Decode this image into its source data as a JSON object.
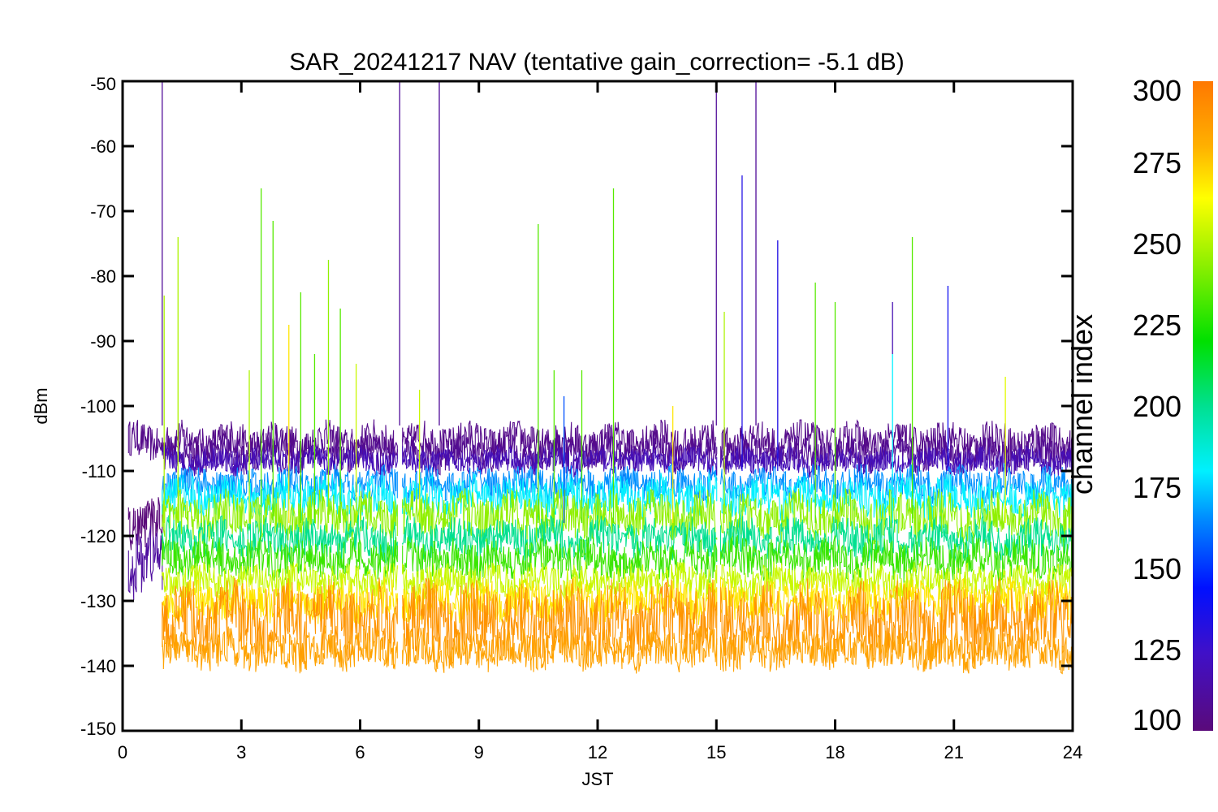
{
  "chart_data": {
    "type": "line",
    "title": "SAR_20241217 NAV (tentative gain_correction= -5.1 dB)",
    "xlabel": "JST",
    "ylabel": "dBm",
    "xlim": [
      0,
      24
    ],
    "ylim": [
      -150,
      -50
    ],
    "x_ticks": [
      "0",
      "3",
      "6",
      "9",
      "12",
      "15",
      "18",
      "21",
      "24"
    ],
    "y_ticks": [
      "-50",
      "-60",
      "-70",
      "-80",
      "-90",
      "-100",
      "-110",
      "-120",
      "-130",
      "-140",
      "-150"
    ],
    "colorbar": {
      "label": "channel index",
      "range": [
        100,
        300
      ],
      "ticks": [
        "300",
        "275",
        "250",
        "225",
        "200",
        "175",
        "150",
        "125",
        "100"
      ],
      "colormap": "rainbow"
    },
    "data_gaps_x": [
      7.0,
      15.05
    ],
    "bands": [
      {
        "channel": 105,
        "center": -105.5,
        "halfwidth": 2.8,
        "start": 0.15
      },
      {
        "channel": 108,
        "center": -107.5,
        "halfwidth": 2.5,
        "start": 1.0
      },
      {
        "channel": 120,
        "center": -108.5,
        "halfwidth": 2.0,
        "start": 1.0
      },
      {
        "channel": 100,
        "center": -118.0,
        "halfwidth": 3.5,
        "start": 0.15,
        "end": 1.0
      },
      {
        "channel": 112,
        "center": -124.0,
        "halfwidth": 5.0,
        "start": 0.15,
        "end": 1.0
      },
      {
        "channel": 165,
        "center": -112.0,
        "halfwidth": 2.5,
        "start": 1.0
      },
      {
        "channel": 180,
        "center": -114.0,
        "halfwidth": 3.0,
        "start": 1.0
      },
      {
        "channel": 245,
        "center": -117.0,
        "halfwidth": 3.5,
        "start": 1.0
      },
      {
        "channel": 200,
        "center": -120.5,
        "halfwidth": 3.0,
        "start": 1.0
      },
      {
        "channel": 230,
        "center": -123.5,
        "halfwidth": 3.0,
        "start": 1.0
      },
      {
        "channel": 255,
        "center": -127.0,
        "halfwidth": 2.5,
        "start": 1.0
      },
      {
        "channel": 270,
        "center": -130.0,
        "halfwidth": 3.0,
        "start": 1.0
      },
      {
        "channel": 290,
        "center": -133.0,
        "halfwidth": 5.5,
        "start": 1.0
      },
      {
        "channel": 285,
        "center": -137.5,
        "halfwidth": 3.0,
        "start": 1.0
      }
    ],
    "spikes": [
      {
        "x": 1.0,
        "y_top": -50,
        "y_bottom": -103,
        "channel": 110
      },
      {
        "x": 1.05,
        "y_top": -83,
        "y_bottom": -118,
        "channel": 250
      },
      {
        "x": 1.4,
        "y_top": -74,
        "y_bottom": -118,
        "channel": 250
      },
      {
        "x": 3.2,
        "y_top": -94.5,
        "y_bottom": -118,
        "channel": 250
      },
      {
        "x": 3.5,
        "y_top": -66.5,
        "y_bottom": -118,
        "channel": 235
      },
      {
        "x": 3.8,
        "y_top": -71.5,
        "y_bottom": -118,
        "channel": 235
      },
      {
        "x": 4.2,
        "y_top": -87.5,
        "y_bottom": -118,
        "channel": 270
      },
      {
        "x": 4.5,
        "y_top": -82.5,
        "y_bottom": -118,
        "channel": 235
      },
      {
        "x": 4.85,
        "y_top": -92,
        "y_bottom": -118,
        "channel": 235
      },
      {
        "x": 5.2,
        "y_top": -77.5,
        "y_bottom": -118,
        "channel": 245
      },
      {
        "x": 5.5,
        "y_top": -85,
        "y_bottom": -118,
        "channel": 235
      },
      {
        "x": 5.9,
        "y_top": -93.5,
        "y_bottom": -118,
        "channel": 255
      },
      {
        "x": 7.0,
        "y_top": -50,
        "y_bottom": -103,
        "channel": 110
      },
      {
        "x": 7.5,
        "y_top": -97.5,
        "y_bottom": -118,
        "channel": 255
      },
      {
        "x": 8.0,
        "y_top": -50,
        "y_bottom": -103,
        "channel": 110
      },
      {
        "x": 10.5,
        "y_top": -72,
        "y_bottom": -118,
        "channel": 235
      },
      {
        "x": 10.9,
        "y_top": -94.5,
        "y_bottom": -118,
        "channel": 235
      },
      {
        "x": 11.15,
        "y_top": -98.5,
        "y_bottom": -118,
        "channel": 155
      },
      {
        "x": 11.6,
        "y_top": -94.5,
        "y_bottom": -118,
        "channel": 235
      },
      {
        "x": 12.4,
        "y_top": -66.5,
        "y_bottom": -118,
        "channel": 235
      },
      {
        "x": 13.9,
        "y_top": -100,
        "y_bottom": -118,
        "channel": 270
      },
      {
        "x": 15.0,
        "y_top": -50,
        "y_bottom": -103,
        "channel": 110
      },
      {
        "x": 15.2,
        "y_top": -85.5,
        "y_bottom": -118,
        "channel": 250
      },
      {
        "x": 15.65,
        "y_top": -64.5,
        "y_bottom": -110,
        "channel": 135
      },
      {
        "x": 16.0,
        "y_top": -50,
        "y_bottom": -103,
        "channel": 110
      },
      {
        "x": 16.55,
        "y_top": -74.5,
        "y_bottom": -110,
        "channel": 135
      },
      {
        "x": 17.5,
        "y_top": -81,
        "y_bottom": -118,
        "channel": 235
      },
      {
        "x": 18.0,
        "y_top": -84,
        "y_bottom": -118,
        "channel": 235
      },
      {
        "x": 19.45,
        "y_top": -84,
        "y_bottom": -92,
        "channel": 118
      },
      {
        "x": 19.45,
        "y_top": -92,
        "y_bottom": -118,
        "channel": 180
      },
      {
        "x": 19.95,
        "y_top": -74,
        "y_bottom": -118,
        "channel": 235
      },
      {
        "x": 20.85,
        "y_top": -81.5,
        "y_bottom": -110,
        "channel": 140
      },
      {
        "x": 22.3,
        "y_top": -95.5,
        "y_bottom": -118,
        "channel": 260
      }
    ]
  }
}
